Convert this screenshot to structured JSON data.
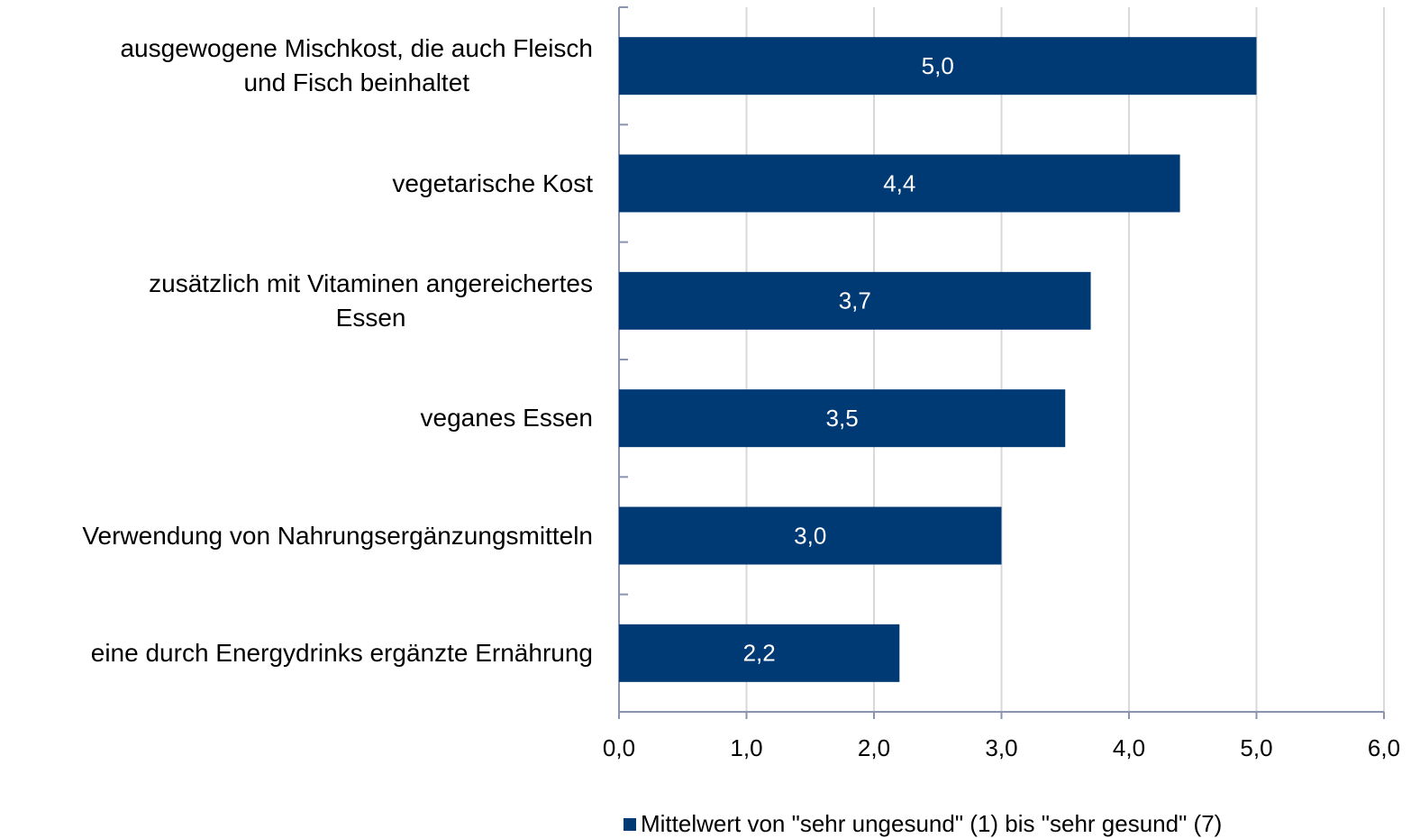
{
  "chart_data": {
    "type": "hbar",
    "categories": [
      "ausgewogene Mischkost, die auch Fleisch\nund Fisch beinhaltet",
      "vegetarische Kost",
      "zusätzlich mit Vitaminen angereichertes\nEssen",
      "veganes Essen",
      "Verwendung von Nahrungsergänzungsmitteln",
      "eine durch Energydrinks ergänzte Ernährung"
    ],
    "series": [
      {
        "name": "Mittelwert von \"sehr ungesund\" (1) bis \"sehr gesund\" (7)",
        "color": "#003a75",
        "values": [
          5.0,
          4.4,
          3.7,
          3.5,
          3.0,
          2.2
        ],
        "value_labels": [
          "5,0",
          "4,4",
          "3,7",
          "3,5",
          "3,0",
          "2,2"
        ]
      }
    ],
    "xlim": [
      0,
      6
    ],
    "xticks": [
      {
        "value": 0,
        "label": "0,0"
      },
      {
        "value": 1,
        "label": "1,0"
      },
      {
        "value": 2,
        "label": "2,0"
      },
      {
        "value": 3,
        "label": "3,0"
      },
      {
        "value": 4,
        "label": "4,0"
      },
      {
        "value": 5,
        "label": "5,0"
      },
      {
        "value": 6,
        "label": "6,0"
      }
    ],
    "grid": true,
    "legend": "bottom"
  }
}
